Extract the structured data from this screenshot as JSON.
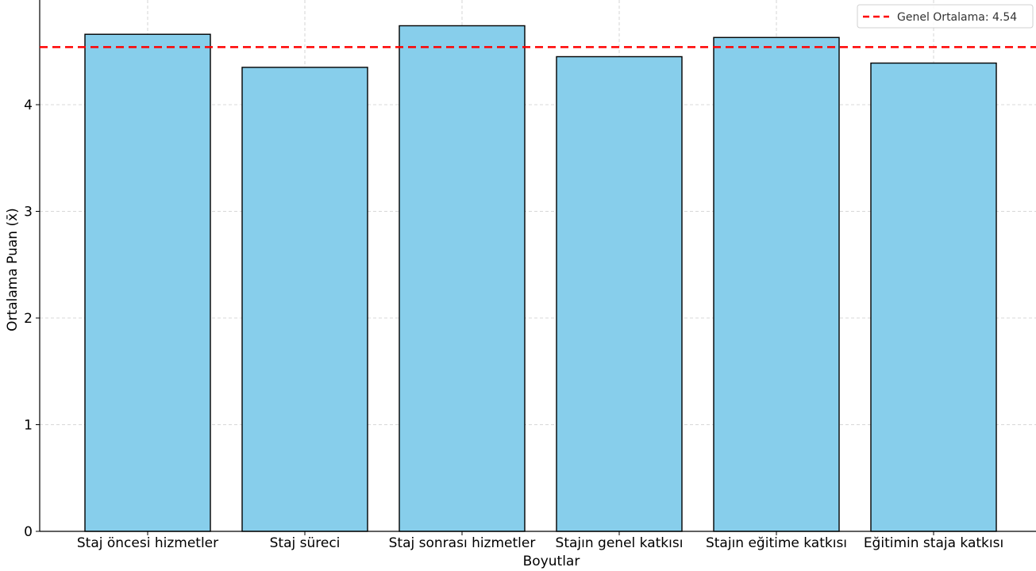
{
  "chart_data": {
    "type": "bar",
    "categories": [
      "Staj öncesi hizmetler",
      "Staj süreci",
      "Staj sonrası hizmetler",
      "Stajın genel katkısı",
      "Stajın eğitime katkısı",
      "Eğitimin staja katkısı"
    ],
    "values": [
      4.66,
      4.35,
      4.74,
      4.45,
      4.63,
      4.39
    ],
    "xlabel": "Boyutlar",
    "ylabel": "Ortalama Puan (x̄)",
    "ylim": [
      0,
      5
    ],
    "yticks": [
      "0",
      "1",
      "2",
      "3",
      "4"
    ],
    "grid": true,
    "bar_color": "#87CEEB",
    "bar_edge_color": "#000000",
    "reference_line": {
      "value": 4.54,
      "label": "Genel Ortalama: 4.54",
      "color": "#FF0000",
      "style": "dashed"
    },
    "legend_position": "top-right"
  }
}
